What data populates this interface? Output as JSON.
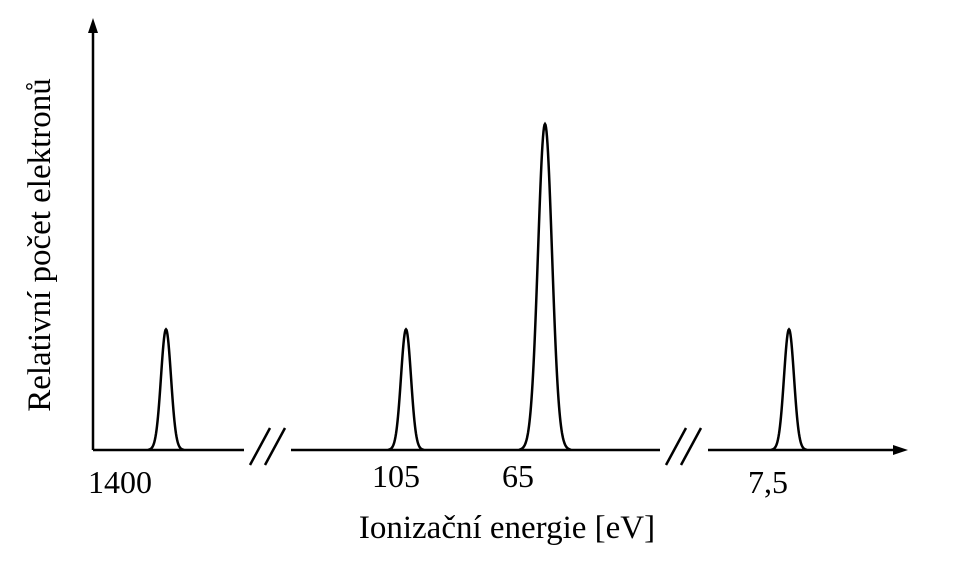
{
  "chart_data": {
    "type": "line",
    "xlabel": "Ionizační energie [eV]",
    "ylabel": "Relativní počet elektronů",
    "x_axis": {
      "direction": "decreasing",
      "breaks_after": [
        "1400",
        "65"
      ]
    },
    "ylim": [
      0,
      1
    ],
    "grid": false,
    "peaks": [
      {
        "x_label": "1400",
        "relative_count": 0.37
      },
      {
        "x_label": "105",
        "relative_count": 0.37
      },
      {
        "x_label": "65",
        "relative_count": 1.0
      },
      {
        "x_label": "7,5",
        "relative_count": 0.37
      }
    ],
    "tick_labels": [
      "1400",
      "105",
      "65",
      "7,5"
    ]
  },
  "colors": {
    "line": "#000000",
    "background": "#ffffff"
  }
}
